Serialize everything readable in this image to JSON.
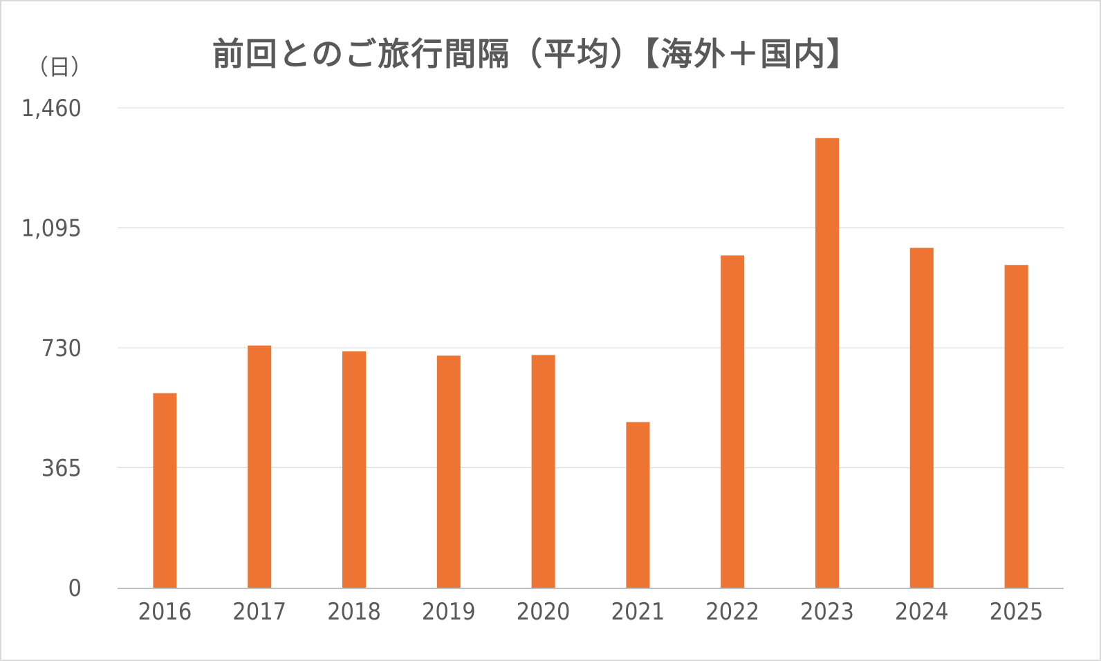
{
  "chart_data": {
    "type": "bar",
    "title": "前回とのご旅行間隔（平均）【海外＋国内】",
    "ylabel": "（日）",
    "xlabel": "",
    "categories": [
      "2016",
      "2017",
      "2018",
      "2019",
      "2020",
      "2021",
      "2022",
      "2023",
      "2024",
      "2025"
    ],
    "values": [
      592,
      737,
      719,
      706,
      708,
      504,
      1011,
      1368,
      1034,
      982
    ],
    "ylim": [
      0,
      1460
    ],
    "yticks": [
      0,
      365,
      730,
      1095,
      1460
    ],
    "ytick_labels": [
      "0",
      "365",
      "730",
      "1,095",
      "1,460"
    ],
    "grid": true,
    "legend": "none",
    "bar_color": "#ED7433",
    "grid_color": "#D9D9D9",
    "axis_color": "#BFBFBF",
    "text_color": "#595959"
  }
}
